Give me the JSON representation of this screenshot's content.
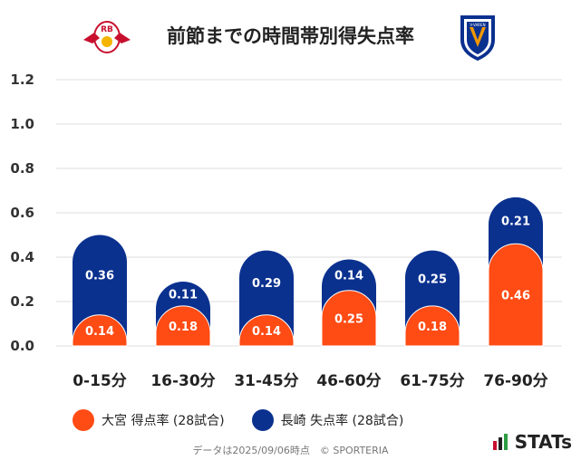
{
  "title": "前節までの時間帯別得失点率",
  "home_logo": "RB",
  "away_logo": "V-VAREN",
  "legend": {
    "home": "大宮 得点率 (28試合)",
    "away": "長崎 失点率 (28試合)"
  },
  "footer": "データは2025/09/06時点　© SPORTERIA",
  "brand": "STATs",
  "colors": {
    "home": "#ff4b14",
    "away": "#0b318f"
  },
  "chart_data": {
    "type": "bar",
    "stacked": true,
    "categories": [
      "0-15分",
      "16-30分",
      "31-45分",
      "46-60分",
      "61-75分",
      "76-90分"
    ],
    "series": [
      {
        "name": "大宮 得点率 (28試合)",
        "values": [
          0.14,
          0.18,
          0.14,
          0.25,
          0.18,
          0.46
        ]
      },
      {
        "name": "長崎 失点率 (28試合)",
        "values": [
          0.36,
          0.11,
          0.29,
          0.14,
          0.25,
          0.21
        ]
      }
    ],
    "yticks": [
      "0.0",
      "0.2",
      "0.4",
      "0.6",
      "0.8",
      "1.0",
      "1.2"
    ],
    "ylim": [
      0,
      1.2
    ],
    "xlabel": "",
    "ylabel": "",
    "legend_position": "bottom"
  }
}
